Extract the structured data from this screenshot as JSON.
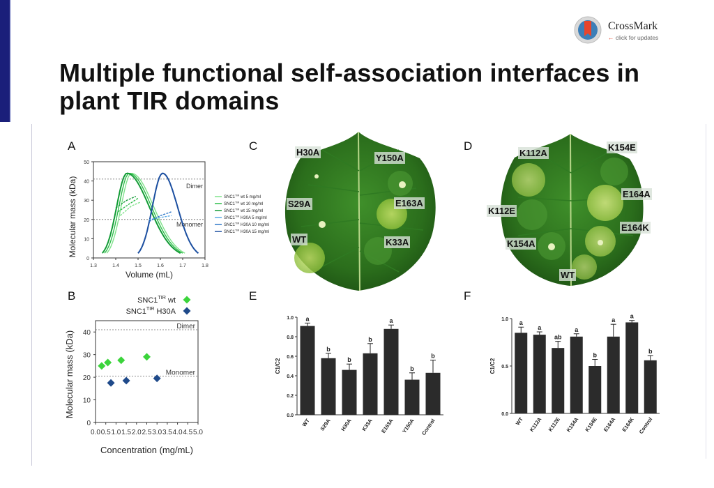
{
  "title": "Multiple functional self-association interfaces in plant TIR domains",
  "crossmark": {
    "name": "CrossMark",
    "sub": "click for updates"
  },
  "panels": {
    "A": "A",
    "B": "B",
    "C": "C",
    "D": "D",
    "E": "E",
    "F": "F"
  },
  "panel_c_labels": [
    "H30A",
    "Y150A",
    "S29A",
    "E163A",
    "WT",
    "K33A"
  ],
  "panel_d_labels": [
    "K112A",
    "K154E",
    "E164A",
    "K112E",
    "E164K",
    "K154A",
    "WT"
  ],
  "colors": {
    "green_light": "#7fe28a",
    "green_mid": "#2ebd4a",
    "green_dark": "#129b35",
    "blue_light": "#5aa9e6",
    "blue_mid": "#2f78c8",
    "blue_dark": "#1c4fa0",
    "bar": "#2b2b2b",
    "diamond_green": "#3bd43b",
    "diamond_blue": "#1f4a8a"
  },
  "chart_data": [
    {
      "panel": "A",
      "type": "line",
      "xlabel": "Volume (mL)",
      "ylabel": "Molecular mass (kDa)",
      "xlim": [
        1.3,
        1.8
      ],
      "ylim": [
        0,
        50
      ],
      "xticks": [
        "1.3",
        "1.4",
        "1.5",
        "1.6",
        "1.7",
        "1.8"
      ],
      "yticks": [
        "0",
        "10",
        "20",
        "30",
        "40",
        "50"
      ],
      "reflines": [
        {
          "y": 41,
          "label": "Dimer"
        },
        {
          "y": 20,
          "label": "Monomer"
        }
      ],
      "legend_placement": "right",
      "legend_title_sup": "TIR",
      "series": [
        {
          "name": "SNC1",
          "sup": "TIR",
          "suffix": "wt 5 mg/ml",
          "color": "#7fe28a",
          "peak": [
            1.47,
            44
          ],
          "range": [
            1.36,
            1.71
          ]
        },
        {
          "name": "SNC1",
          "sup": "TIR",
          "suffix": "wt 10 mg/ml",
          "color": "#2ebd4a",
          "peak": [
            1.46,
            44
          ],
          "range": [
            1.35,
            1.7
          ]
        },
        {
          "name": "SNC1",
          "sup": "TIR",
          "suffix": "wt 15 mg/ml",
          "color": "#129b35",
          "peak": [
            1.45,
            44
          ],
          "range": [
            1.34,
            1.69
          ]
        },
        {
          "name": "SNC1",
          "sup": "TIR",
          "suffix": "H30A 5 mg/ml",
          "color": "#5aa9e6",
          "peak": [
            1.61,
            44
          ],
          "range": [
            1.5,
            1.77
          ]
        },
        {
          "name": "SNC1",
          "sup": "TIR",
          "suffix": "H30A 10 mg/ml",
          "color": "#2f78c8",
          "peak": [
            1.61,
            44
          ],
          "range": [
            1.5,
            1.77
          ]
        },
        {
          "name": "SNC1",
          "sup": "TIR",
          "suffix": "H30A 15 mg/ml",
          "color": "#1c4fa0",
          "peak": [
            1.61,
            44
          ],
          "range": [
            1.5,
            1.77
          ]
        }
      ],
      "mass_traces": [
        {
          "color": "#7fe28a",
          "points": [
            [
              1.42,
              22
            ],
            [
              1.47,
              27
            ],
            [
              1.51,
              29
            ]
          ]
        },
        {
          "color": "#2ebd4a",
          "points": [
            [
              1.41,
              24
            ],
            [
              1.46,
              28
            ],
            [
              1.5,
              31
            ]
          ]
        },
        {
          "color": "#129b35",
          "points": [
            [
              1.4,
              26
            ],
            [
              1.45,
              30
            ],
            [
              1.49,
              32
            ]
          ]
        },
        {
          "color": "#5aa9e6",
          "points": [
            [
              1.55,
              20
            ],
            [
              1.6,
              21
            ],
            [
              1.65,
              22
            ]
          ]
        },
        {
          "color": "#2f78c8",
          "points": [
            [
              1.55,
              19
            ],
            [
              1.6,
              22
            ],
            [
              1.65,
              24
            ]
          ]
        }
      ]
    },
    {
      "panel": "B",
      "type": "scatter",
      "xlabel": "Concentration (mg/mL)",
      "ylabel": "Molecular mass (kDa)",
      "xlim": [
        0,
        5
      ],
      "ylim": [
        0,
        45
      ],
      "xticks": [
        "0.0",
        "0.5",
        "1.0",
        "1.5",
        "2.0",
        "2.5",
        "3.0",
        "3.5",
        "4.0",
        "4.5",
        "5.0"
      ],
      "yticks": [
        "0",
        "10",
        "20",
        "30",
        "40"
      ],
      "reflines": [
        {
          "y": 41,
          "label": "Dimer"
        },
        {
          "y": 20.5,
          "label": "Monomer"
        }
      ],
      "legend_placement": "top",
      "series": [
        {
          "name": "SNC1",
          "sup": "TIR",
          "suffix": "wt",
          "color": "#3bd43b",
          "x": [
            0.3,
            0.6,
            1.25,
            2.5
          ],
          "y": [
            25,
            26.5,
            27.5,
            29
          ]
        },
        {
          "name": "SNC1",
          "sup": "TIR",
          "suffix": "H30A",
          "color": "#1f4a8a",
          "x": [
            0.75,
            1.5,
            3.0
          ],
          "y": [
            17.5,
            18.5,
            19.5
          ]
        }
      ]
    },
    {
      "panel": "E",
      "type": "bar",
      "ylabel": "C1/C2",
      "ylim": [
        0,
        1.0
      ],
      "yticks": [
        "0.0",
        "0.2",
        "0.4",
        "0.6",
        "0.8",
        "1.0"
      ],
      "categories": [
        "WT",
        "S29A",
        "H30A",
        "K33A",
        "E163A",
        "Y150A",
        "Control"
      ],
      "values": [
        0.91,
        0.58,
        0.46,
        0.63,
        0.88,
        0.36,
        0.43
      ],
      "errors": [
        0.03,
        0.05,
        0.06,
        0.1,
        0.04,
        0.07,
        0.13
      ],
      "letters": [
        "a",
        "b",
        "b",
        "b",
        "a",
        "b",
        "b"
      ]
    },
    {
      "panel": "F",
      "type": "bar",
      "ylabel": "C1/C2",
      "ylim": [
        0,
        1.0
      ],
      "yticks": [
        "0.0",
        "0.5",
        "1.0"
      ],
      "categories": [
        "WT",
        "K112A",
        "K112E",
        "K154A",
        "K154E",
        "E164A",
        "E164K",
        "Control"
      ],
      "values": [
        0.85,
        0.83,
        0.69,
        0.81,
        0.5,
        0.81,
        0.96,
        0.56
      ],
      "errors": [
        0.06,
        0.03,
        0.07,
        0.03,
        0.07,
        0.13,
        0.02,
        0.05
      ],
      "letters": [
        "a",
        "a",
        "ab",
        "a",
        "b",
        "a",
        "a",
        "b"
      ]
    }
  ]
}
